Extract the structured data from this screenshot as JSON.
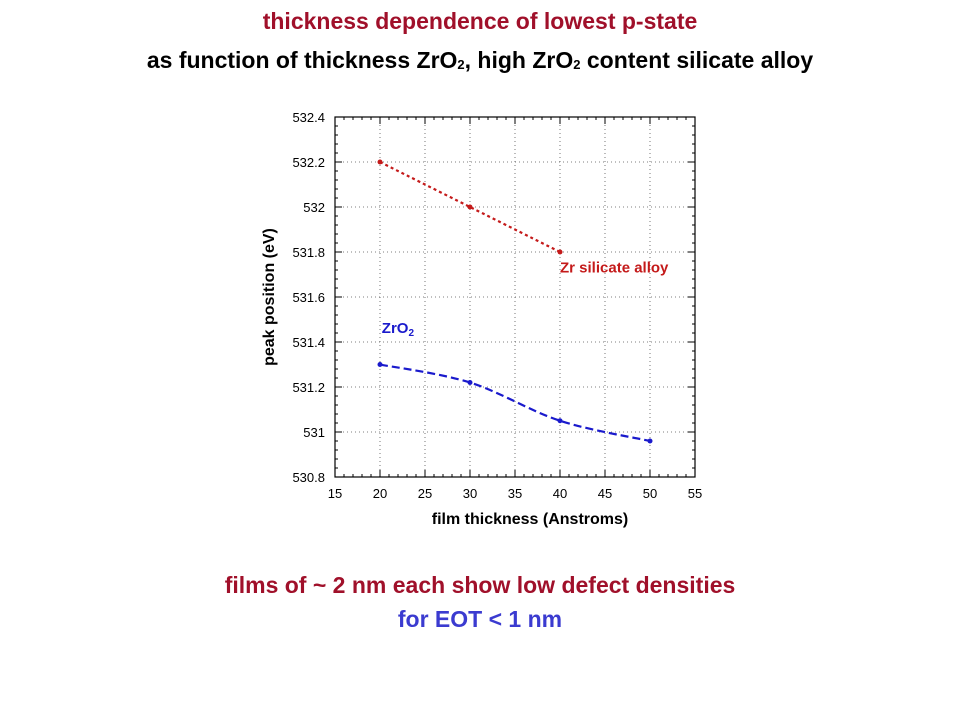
{
  "title": "thickness dependence of lowest p-state",
  "subtitle": {
    "part1": "as function of thickness ZrO",
    "sub1": "2",
    "part2": ", high ZrO",
    "sub2": "2",
    "part3": " content silicate alloy"
  },
  "footer": {
    "line1": "films of ~ 2 nm each show low defect densities",
    "line2": "for EOT < 1 nm"
  },
  "colors": {
    "title": "#a0102a",
    "footer_line1": "#a0102a",
    "footer_line2": "#3b3bd0"
  },
  "chart_data": {
    "type": "line",
    "xlabel": "film thickness (Anstroms)",
    "ylabel": "peak position (eV)",
    "xlim": [
      15,
      55
    ],
    "ylim": [
      530.8,
      532.4
    ],
    "xticks": [
      15,
      20,
      25,
      30,
      35,
      40,
      45,
      50,
      55
    ],
    "yticks": [
      530.8,
      531,
      531.2,
      531.4,
      531.6,
      531.8,
      532,
      532.2,
      532.4
    ],
    "ytick_labels": [
      "530.8",
      "531",
      "531.2",
      "531.4",
      "531.6",
      "531.8",
      "532",
      "532.2",
      "532.4"
    ],
    "grid": true,
    "series": [
      {
        "name": "Zr silicate alloy",
        "color": "#c41a1a",
        "line_style": "dashed",
        "x": [
          20,
          30,
          40
        ],
        "y": [
          532.2,
          532.0,
          531.8
        ],
        "label_at": [
          40,
          531.71
        ]
      },
      {
        "name": "ZrO",
        "name_sub": "2",
        "color": "#1a1acc",
        "line_style": "dashed",
        "x": [
          20,
          30,
          40,
          50
        ],
        "y": [
          531.3,
          531.22,
          531.05,
          530.96
        ],
        "label_at": [
          20.2,
          531.44
        ]
      }
    ]
  }
}
